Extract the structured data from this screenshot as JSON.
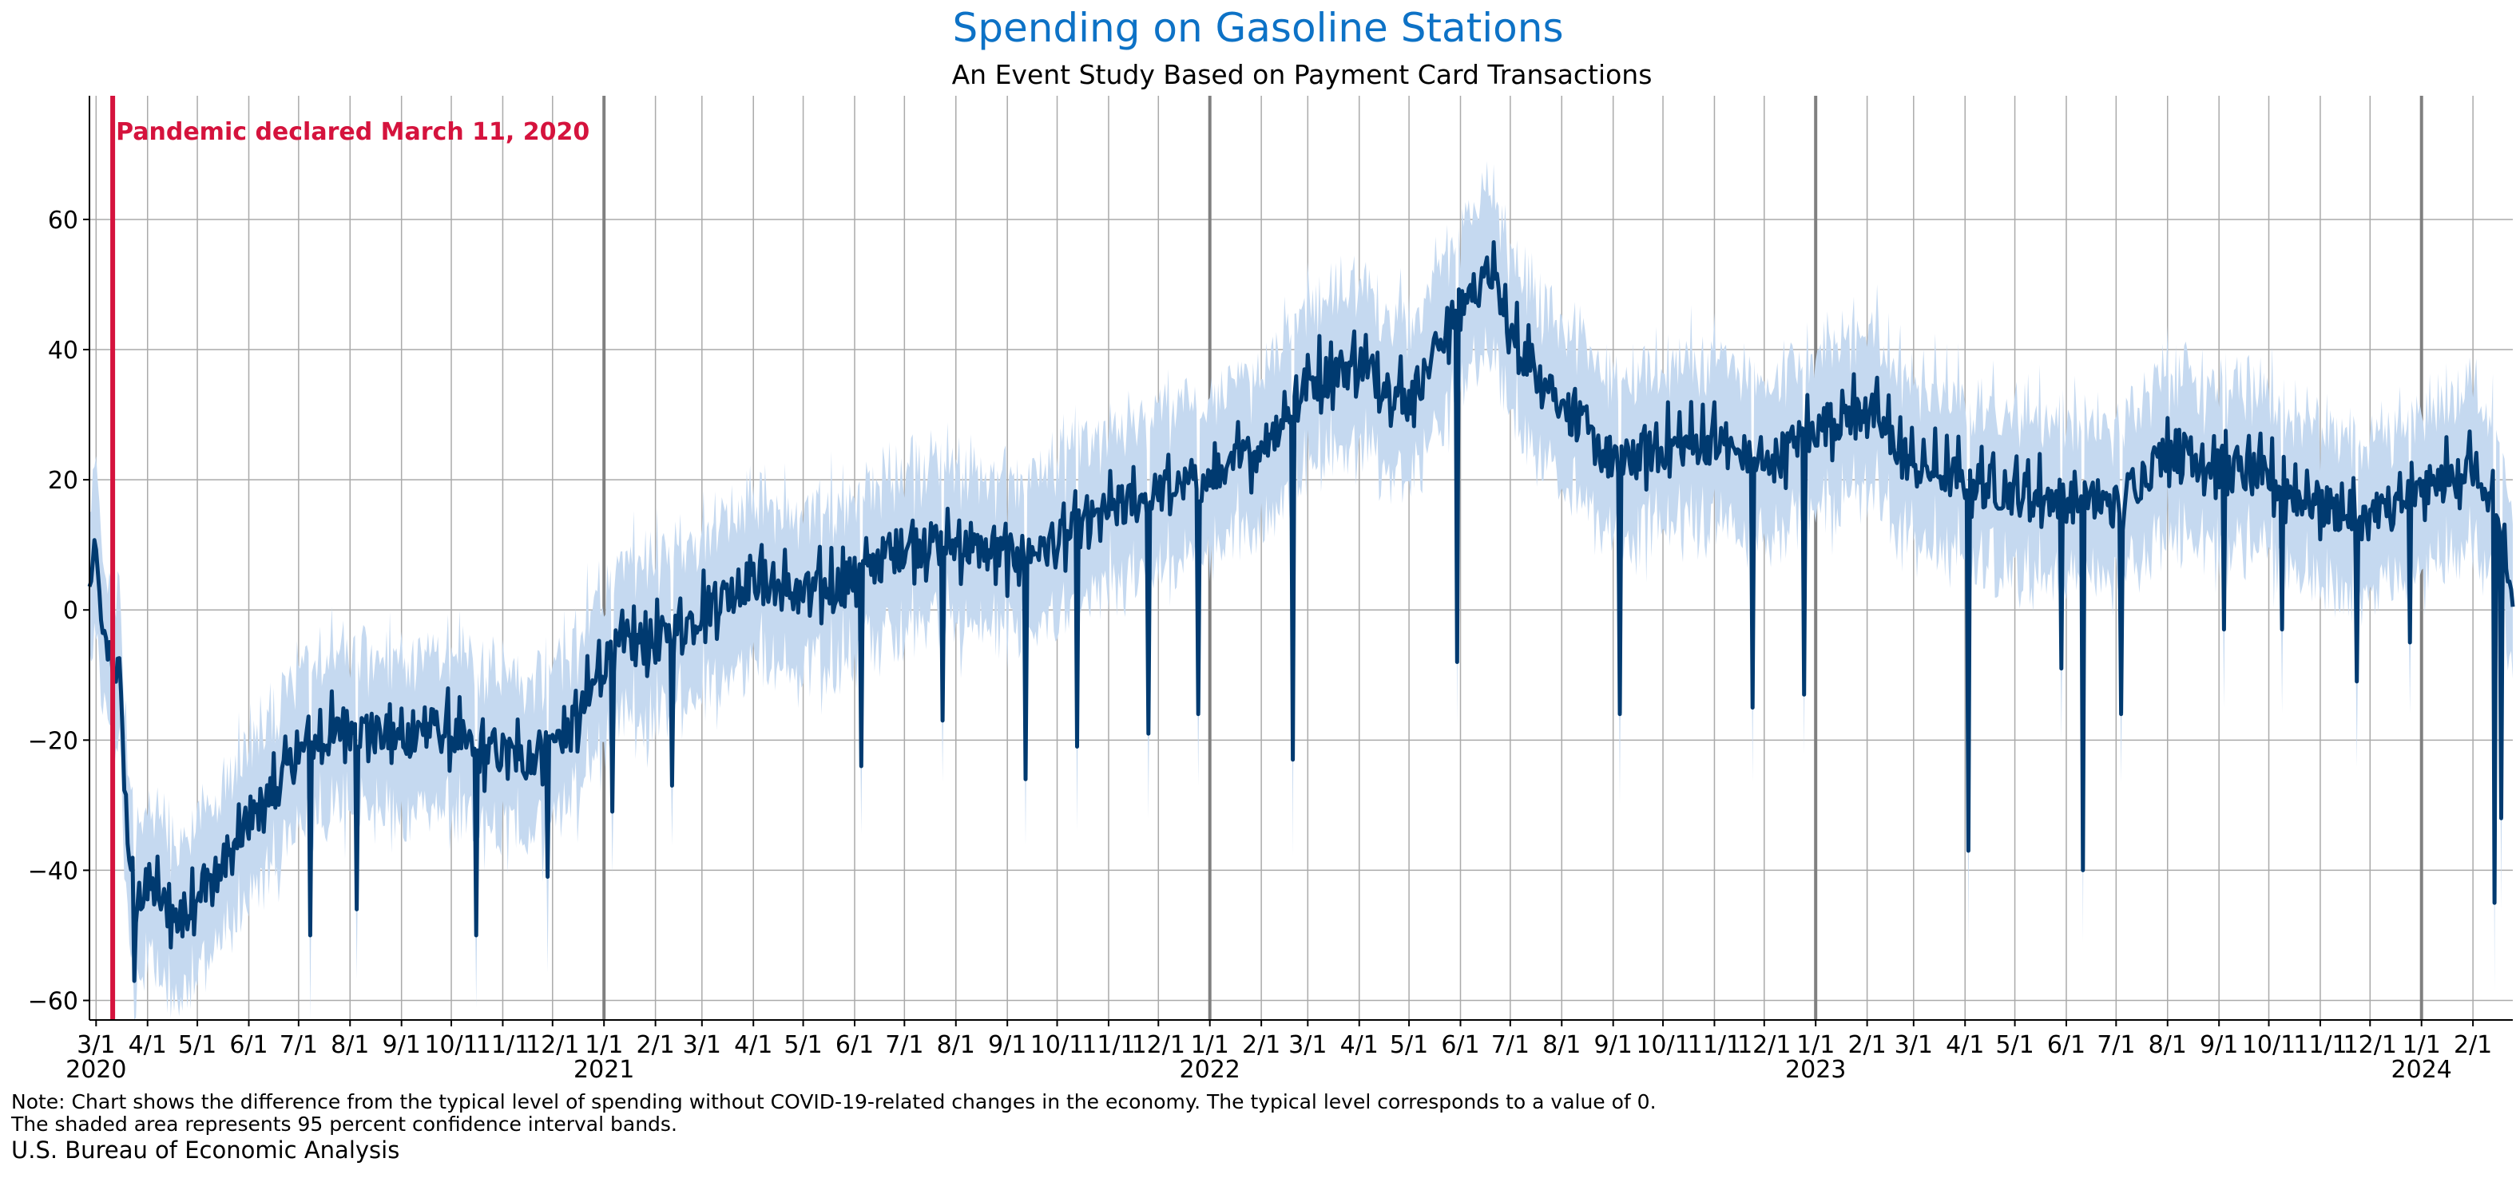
{
  "title": "Spending on Gasoline Stations",
  "subtitle": "An Event Study Based on Payment Card Transactions",
  "note_line1": "Note: Chart shows the difference from the typical level of spending without COVID-19-related changes in the economy. The typical level corresponds to a value of 0.",
  "note_line2": "The shaded area represents 95 percent confidence interval bands.",
  "source": "U.S. Bureau of Economic Analysis",
  "colors": {
    "title": "#0d72c6",
    "line": "#003a70",
    "band": "#c5d9f0",
    "annotation": "#d5133d",
    "grid": "#aaaaaa",
    "year_line": "#808080"
  },
  "chart_data": {
    "type": "line",
    "x_axis": "date",
    "x_range": [
      "2020-02-26",
      "2024-02-25"
    ],
    "ylim": [
      -63,
      79
    ],
    "yticks": [
      -60,
      -40,
      -20,
      0,
      20,
      40,
      60
    ],
    "grid": true,
    "month_tick_labels": [
      "3/1",
      "4/1",
      "5/1",
      "6/1",
      "7/1",
      "8/1",
      "9/1",
      "10/1",
      "11/1",
      "12/1",
      "1/1",
      "2/1",
      "3/1",
      "4/1",
      "5/1",
      "6/1",
      "7/1",
      "8/1",
      "9/1",
      "10/1",
      "11/1",
      "12/1",
      "1/1",
      "2/1",
      "3/1",
      "4/1",
      "5/1",
      "6/1",
      "7/1",
      "8/1",
      "9/1",
      "10/1",
      "11/1",
      "12/1",
      "1/1",
      "2/1",
      "3/1",
      "4/1",
      "5/1",
      "6/1",
      "7/1",
      "8/1",
      "9/1",
      "10/1",
      "11/1",
      "12/1",
      "1/1",
      "2/1"
    ],
    "month_tick_dates": [
      "2020-03-01",
      "2020-04-01",
      "2020-05-01",
      "2020-06-01",
      "2020-07-01",
      "2020-08-01",
      "2020-09-01",
      "2020-10-01",
      "2020-11-01",
      "2020-12-01",
      "2021-01-01",
      "2021-02-01",
      "2021-03-01",
      "2021-04-01",
      "2021-05-01",
      "2021-06-01",
      "2021-07-01",
      "2021-08-01",
      "2021-09-01",
      "2021-10-01",
      "2021-11-01",
      "2021-12-01",
      "2022-01-01",
      "2022-02-01",
      "2022-03-01",
      "2022-04-01",
      "2022-05-01",
      "2022-06-01",
      "2022-07-01",
      "2022-08-01",
      "2022-09-01",
      "2022-10-01",
      "2022-11-01",
      "2022-12-01",
      "2023-01-01",
      "2023-02-01",
      "2023-03-01",
      "2023-04-01",
      "2023-05-01",
      "2023-06-01",
      "2023-07-01",
      "2023-08-01",
      "2023-09-01",
      "2023-10-01",
      "2023-11-01",
      "2023-12-01",
      "2024-01-01",
      "2024-02-01"
    ],
    "year_labels": [
      {
        "label": "2020",
        "date": "2020-03-01"
      },
      {
        "label": "2021",
        "date": "2021-01-01"
      },
      {
        "label": "2022",
        "date": "2022-01-01"
      },
      {
        "label": "2023",
        "date": "2023-01-01"
      },
      {
        "label": "2024",
        "date": "2024-01-01"
      }
    ],
    "annotation": {
      "text": "Pandemic declared March 11, 2020",
      "date": "2020-03-11"
    },
    "band_halfwidth": 12,
    "series": [
      {
        "role": "estimate",
        "points": [
          [
            "2020-02-26",
            5
          ],
          [
            "2020-03-01",
            8
          ],
          [
            "2020-03-05",
            -5
          ],
          [
            "2020-03-11",
            -8
          ],
          [
            "2020-03-15",
            -10
          ],
          [
            "2020-03-20",
            -35
          ],
          [
            "2020-03-25",
            -45
          ],
          [
            "2020-04-01",
            -42
          ],
          [
            "2020-04-10",
            -45
          ],
          [
            "2020-04-20",
            -48
          ],
          [
            "2020-05-01",
            -43
          ],
          [
            "2020-05-10",
            -42
          ],
          [
            "2020-05-20",
            -38
          ],
          [
            "2020-06-01",
            -33
          ],
          [
            "2020-06-15",
            -28
          ],
          [
            "2020-07-01",
            -22
          ],
          [
            "2020-07-15",
            -20
          ],
          [
            "2020-08-01",
            -18
          ],
          [
            "2020-08-15",
            -19
          ],
          [
            "2020-09-01",
            -20
          ],
          [
            "2020-09-15",
            -18
          ],
          [
            "2020-10-01",
            -19
          ],
          [
            "2020-10-15",
            -22
          ],
          [
            "2020-11-01",
            -22
          ],
          [
            "2020-11-15",
            -23
          ],
          [
            "2020-12-01",
            -20
          ],
          [
            "2020-12-15",
            -18
          ],
          [
            "2021-01-01",
            -8
          ],
          [
            "2021-01-15",
            -5
          ],
          [
            "2021-02-01",
            -5
          ],
          [
            "2021-02-15",
            -3
          ],
          [
            "2021-03-01",
            0
          ],
          [
            "2021-04-01",
            5
          ],
          [
            "2021-05-01",
            2
          ],
          [
            "2021-06-01",
            5
          ],
          [
            "2021-07-01",
            10
          ],
          [
            "2021-08-01",
            10
          ],
          [
            "2021-09-01",
            8
          ],
          [
            "2021-10-01",
            10
          ],
          [
            "2021-11-01",
            15
          ],
          [
            "2021-12-01",
            18
          ],
          [
            "2022-01-01",
            20
          ],
          [
            "2022-02-01",
            25
          ],
          [
            "2022-03-01",
            35
          ],
          [
            "2022-04-01",
            38
          ],
          [
            "2022-05-01",
            32
          ],
          [
            "2022-06-01",
            47
          ],
          [
            "2022-06-20",
            52
          ],
          [
            "2022-07-01",
            42
          ],
          [
            "2022-08-01",
            32
          ],
          [
            "2022-09-01",
            22
          ],
          [
            "2022-10-01",
            25
          ],
          [
            "2022-11-01",
            26
          ],
          [
            "2022-12-01",
            22
          ],
          [
            "2023-01-01",
            28
          ],
          [
            "2023-02-01",
            31
          ],
          [
            "2023-03-01",
            22
          ],
          [
            "2023-04-01",
            20
          ],
          [
            "2023-05-01",
            18
          ],
          [
            "2023-06-01",
            17
          ],
          [
            "2023-07-01",
            16
          ],
          [
            "2023-08-01",
            25
          ],
          [
            "2023-09-01",
            22
          ],
          [
            "2023-10-01",
            20
          ],
          [
            "2023-11-01",
            16
          ],
          [
            "2023-12-01",
            14
          ],
          [
            "2024-01-01",
            18
          ],
          [
            "2024-02-01",
            22
          ],
          [
            "2024-02-20",
            10
          ],
          [
            "2024-02-25",
            0
          ]
        ],
        "dips": [
          [
            "2020-03-24",
            -57
          ],
          [
            "2020-07-08",
            -50
          ],
          [
            "2020-08-05",
            -46
          ],
          [
            "2020-10-16",
            -50
          ],
          [
            "2020-11-28",
            -41
          ],
          [
            "2021-01-06",
            -31
          ],
          [
            "2021-02-11",
            -27
          ],
          [
            "2021-06-05",
            -24
          ],
          [
            "2021-07-24",
            -17
          ],
          [
            "2021-09-12",
            -26
          ],
          [
            "2021-10-13",
            -21
          ],
          [
            "2021-11-25",
            -19
          ],
          [
            "2021-12-25",
            -16
          ],
          [
            "2022-02-20",
            -23
          ],
          [
            "2022-05-30",
            -8
          ],
          [
            "2022-09-05",
            -16
          ],
          [
            "2022-11-24",
            -15
          ],
          [
            "2022-12-25",
            -13
          ],
          [
            "2023-04-03",
            -37
          ],
          [
            "2023-05-29",
            -9
          ],
          [
            "2023-06-11",
            -40
          ],
          [
            "2023-07-04",
            -16
          ],
          [
            "2023-09-04",
            -3
          ],
          [
            "2023-10-09",
            -3
          ],
          [
            "2023-11-23",
            -11
          ],
          [
            "2023-12-25",
            -5
          ],
          [
            "2024-02-14",
            -45
          ],
          [
            "2024-02-18",
            -32
          ]
        ]
      }
    ]
  }
}
